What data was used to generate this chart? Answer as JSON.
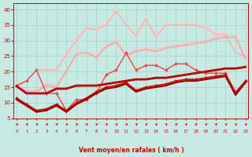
{
  "xlabel": "Vent moyen/en rafales ( km/h )",
  "background_color": "#c8eae4",
  "grid_color": "#a8d8cc",
  "x_values": [
    0,
    1,
    2,
    3,
    4,
    5,
    6,
    7,
    8,
    9,
    10,
    11,
    12,
    13,
    14,
    15,
    16,
    17,
    18,
    19,
    20,
    21,
    22,
    23
  ],
  "ylim": [
    5,
    42
  ],
  "yticks": [
    5,
    10,
    15,
    20,
    25,
    30,
    35,
    40
  ],
  "lines": [
    {
      "y": [
        15.5,
        17.0,
        20.5,
        21.0,
        20.5,
        26.0,
        30.5,
        34.0,
        34.0,
        35.5,
        40.0,
        35.5,
        32.0,
        37.5,
        31.5,
        35.5,
        35.5,
        35.5,
        35.5,
        34.5,
        32.5,
        32.5,
        26.0,
        25.5
      ],
      "color": "#ffcccc",
      "lw": 0.9,
      "marker": "D",
      "ms": 2.0,
      "zorder": 1
    },
    {
      "y": [
        15.3,
        14.0,
        14.0,
        16.0,
        15.5,
        20.5,
        26.0,
        26.5,
        25.0,
        28.5,
        30.0,
        25.5,
        27.0,
        27.5,
        27.0,
        28.0,
        28.5,
        29.0,
        29.5,
        30.0,
        31.0,
        31.5,
        31.5,
        24.5
      ],
      "color": "#ffbbbb",
      "lw": 0.9,
      "marker": "D",
      "ms": 2.0,
      "zorder": 2
    },
    {
      "y": [
        15.5,
        17.0,
        20.5,
        20.5,
        20.5,
        25.5,
        30.0,
        34.0,
        33.5,
        35.0,
        39.5,
        35.0,
        31.5,
        37.0,
        31.0,
        35.0,
        35.0,
        35.0,
        35.0,
        34.0,
        32.0,
        32.0,
        26.0,
        25.0
      ],
      "color": "#ffaaaa",
      "lw": 0.9,
      "marker": null,
      "ms": 0,
      "zorder": 3
    },
    {
      "y": [
        15.3,
        13.5,
        13.5,
        15.5,
        15.0,
        20.0,
        25.5,
        26.0,
        24.5,
        28.0,
        29.5,
        25.0,
        26.5,
        27.0,
        26.5,
        27.5,
        28.0,
        28.5,
        29.0,
        29.5,
        30.5,
        31.0,
        31.0,
        24.0
      ],
      "color": "#ff9999",
      "lw": 0.9,
      "marker": null,
      "ms": 0,
      "zorder": 4
    },
    {
      "y": [
        15.5,
        17.0,
        20.5,
        13.0,
        13.0,
        7.5,
        11.0,
        11.0,
        13.0,
        19.0,
        20.5,
        26.0,
        20.5,
        22.0,
        22.0,
        20.5,
        22.5,
        22.5,
        20.5,
        19.5,
        19.5,
        19.5,
        13.5,
        17.0
      ],
      "color": "#ee4444",
      "lw": 1.0,
      "marker": "D",
      "ms": 2.0,
      "zorder": 5
    },
    {
      "y": [
        11.5,
        9.5,
        7.5,
        8.0,
        9.5,
        7.5,
        10.0,
        11.5,
        13.5,
        15.0,
        15.5,
        16.5,
        14.0,
        15.0,
        15.5,
        16.0,
        17.0,
        17.5,
        17.5,
        18.0,
        18.5,
        19.0,
        13.0,
        17.0
      ],
      "color": "#cc0000",
      "lw": 1.2,
      "marker": "D",
      "ms": 2.0,
      "zorder": 6
    },
    {
      "y": [
        15.3,
        13.0,
        13.0,
        13.0,
        14.5,
        14.5,
        15.5,
        15.5,
        15.5,
        16.0,
        16.5,
        17.0,
        17.5,
        17.5,
        18.0,
        18.0,
        18.5,
        19.0,
        19.5,
        20.0,
        20.5,
        21.0,
        21.0,
        21.5
      ],
      "color": "#bb0000",
      "lw": 2.0,
      "marker": null,
      "ms": 0,
      "zorder": 7
    },
    {
      "y": [
        11.0,
        9.0,
        7.0,
        7.5,
        9.0,
        7.0,
        9.5,
        11.0,
        13.0,
        14.5,
        15.0,
        16.0,
        13.5,
        14.5,
        15.0,
        15.5,
        16.5,
        17.0,
        17.0,
        17.5,
        18.0,
        18.5,
        12.5,
        16.5
      ],
      "color": "#990000",
      "lw": 1.5,
      "marker": null,
      "ms": 0,
      "zorder": 8
    }
  ]
}
